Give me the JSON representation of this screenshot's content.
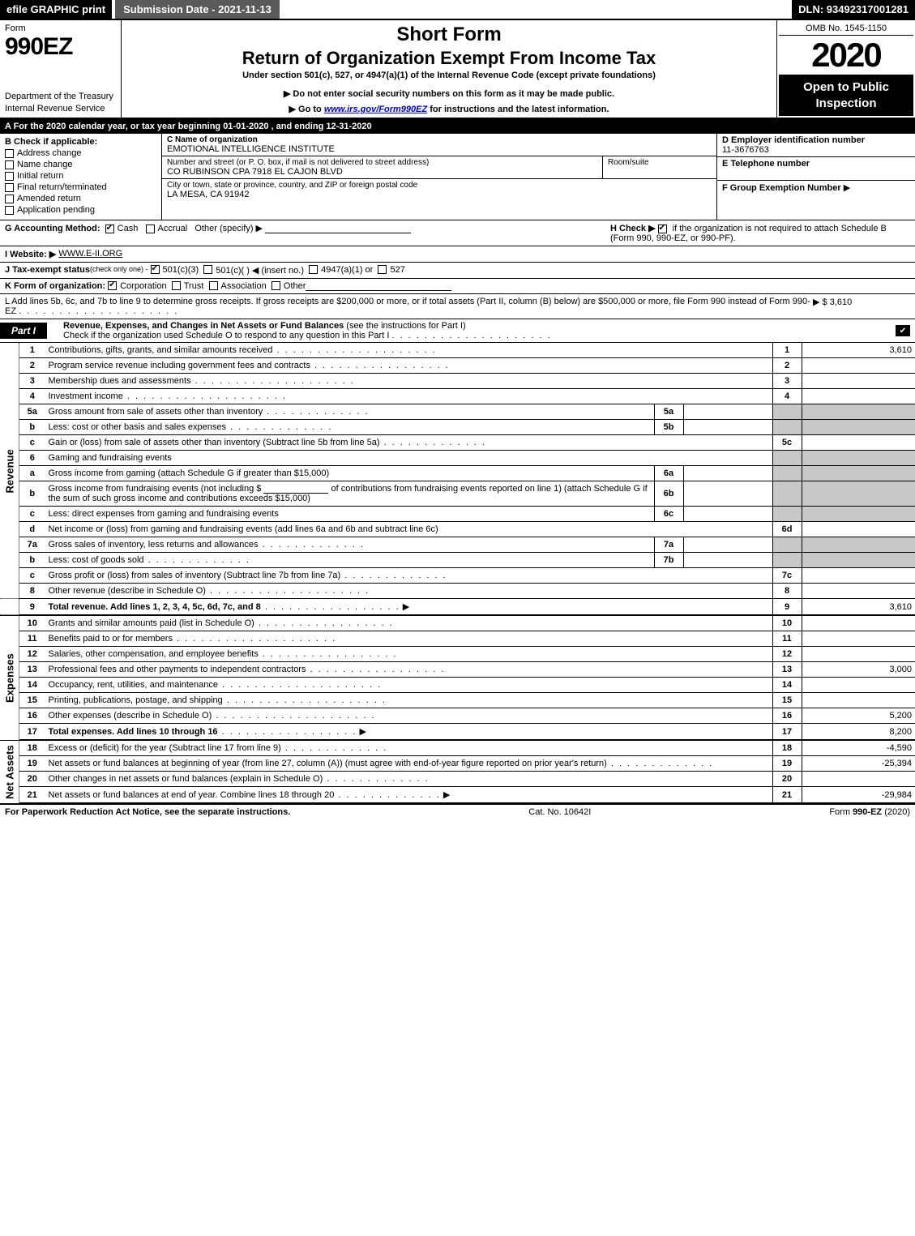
{
  "topbar": {
    "efile": "efile GRAPHIC print",
    "submission": "Submission Date - 2021-11-13",
    "dln": "DLN: 93492317001281"
  },
  "header": {
    "form_word": "Form",
    "form_number": "990EZ",
    "dept": "Department of the Treasury\nInternal Revenue Service",
    "short_form": "Short Form",
    "return_title": "Return of Organization Exempt From Income Tax",
    "section_text": "Under section 501(c), 527, or 4947(a)(1) of the Internal Revenue Code (except private foundations)",
    "donot": "▶ Do not enter social security numbers on this form as it may be made public.",
    "goto_pre": "▶ Go to ",
    "goto_link": "www.irs.gov/Form990EZ",
    "goto_post": " for instructions and the latest information.",
    "omb": "OMB No. 1545-1150",
    "year": "2020",
    "open": "Open to Public Inspection"
  },
  "line_a": "A For the 2020 calendar year, or tax year beginning 01-01-2020 , and ending 12-31-2020",
  "box_b": {
    "title": "B  Check if applicable:",
    "items": [
      {
        "label": "Address change",
        "checked": false
      },
      {
        "label": "Name change",
        "checked": false
      },
      {
        "label": "Initial return",
        "checked": false
      },
      {
        "label": "Final return/terminated",
        "checked": false
      },
      {
        "label": "Amended return",
        "checked": false
      },
      {
        "label": "Application pending",
        "checked": false
      }
    ]
  },
  "box_c": {
    "name_label": "C Name of organization",
    "name": "EMOTIONAL INTELLIGENCE INSTITUTE",
    "street_label": "Number and street (or P. O. box, if mail is not delivered to street address)",
    "street": "CO RUBINSON CPA 7918 EL CAJON BLVD",
    "room_label": "Room/suite",
    "city_label": "City or town, state or province, country, and ZIP or foreign postal code",
    "city": "LA MESA, CA  91942"
  },
  "box_def": {
    "d_label": "D Employer identification number",
    "d_value": "11-3676763",
    "e_label": "E Telephone number",
    "e_value": "",
    "f_label": "F Group Exemption Number",
    "f_arrow": "▶"
  },
  "line_g": {
    "label": "G Accounting Method:",
    "cash": "Cash",
    "accrual": "Accrual",
    "other": "Other (specify) ▶",
    "cash_checked": true
  },
  "line_h": {
    "text_pre": "H  Check ▶",
    "text_post": "if the organization is not required to attach Schedule B (Form 990, 990-EZ, or 990-PF).",
    "checked": true
  },
  "line_i": {
    "label": "I Website: ▶",
    "value": "WWW.E-II.ORG"
  },
  "line_j": {
    "label": "J Tax-exempt status",
    "sub": "(check only one) -",
    "opt1": "501(c)(3)",
    "opt1_checked": true,
    "opt2": "501(c)(  ) ◀ (insert no.)",
    "opt3": "4947(a)(1) or",
    "opt4": "527"
  },
  "line_k": {
    "label": "K Form of organization:",
    "corp": "Corporation",
    "corp_checked": true,
    "trust": "Trust",
    "assoc": "Association",
    "other": "Other"
  },
  "line_l": {
    "text": "L Add lines 5b, 6c, and 7b to line 9 to determine gross receipts. If gross receipts are $200,000 or more, or if total assets (Part II, column (B) below) are $500,000 or more, file Form 990 instead of Form 990-EZ",
    "amount": "▶ $ 3,610"
  },
  "part1": {
    "label": "Part I",
    "title": "Revenue, Expenses, and Changes in Net Assets or Fund Balances",
    "title_sub": "(see the instructions for Part I)",
    "check_text": "Check if the organization used Schedule O to respond to any question in this Part I",
    "checked": true
  },
  "side_labels": {
    "revenue": "Revenue",
    "expenses": "Expenses",
    "netassets": "Net Assets"
  },
  "revenue_lines": {
    "l1": {
      "num": "1",
      "desc": "Contributions, gifts, grants, and similar amounts received",
      "box": "1",
      "val": "3,610"
    },
    "l2": {
      "num": "2",
      "desc": "Program service revenue including government fees and contracts",
      "box": "2",
      "val": ""
    },
    "l3": {
      "num": "3",
      "desc": "Membership dues and assessments",
      "box": "3",
      "val": ""
    },
    "l4": {
      "num": "4",
      "desc": "Investment income",
      "box": "4",
      "val": ""
    },
    "l5a": {
      "num": "5a",
      "desc": "Gross amount from sale of assets other than inventory",
      "inner": "5a",
      "innerval": ""
    },
    "l5b": {
      "num": "b",
      "desc": "Less: cost or other basis and sales expenses",
      "inner": "5b",
      "innerval": ""
    },
    "l5c": {
      "num": "c",
      "desc": "Gain or (loss) from sale of assets other than inventory (Subtract line 5b from line 5a)",
      "box": "5c",
      "val": ""
    },
    "l6": {
      "num": "6",
      "desc": "Gaming and fundraising events"
    },
    "l6a": {
      "num": "a",
      "desc": "Gross income from gaming (attach Schedule G if greater than $15,000)",
      "inner": "6a",
      "innerval": ""
    },
    "l6b": {
      "num": "b",
      "desc1": "Gross income from fundraising events (not including $",
      "desc2": "of contributions from fundraising events reported on line 1) (attach Schedule G if the sum of such gross income and contributions exceeds $15,000)",
      "inner": "6b",
      "innerval": ""
    },
    "l6c": {
      "num": "c",
      "desc": "Less: direct expenses from gaming and fundraising events",
      "inner": "6c",
      "innerval": ""
    },
    "l6d": {
      "num": "d",
      "desc": "Net income or (loss) from gaming and fundraising events (add lines 6a and 6b and subtract line 6c)",
      "box": "6d",
      "val": ""
    },
    "l7a": {
      "num": "7a",
      "desc": "Gross sales of inventory, less returns and allowances",
      "inner": "7a",
      "innerval": ""
    },
    "l7b": {
      "num": "b",
      "desc": "Less: cost of goods sold",
      "inner": "7b",
      "innerval": ""
    },
    "l7c": {
      "num": "c",
      "desc": "Gross profit or (loss) from sales of inventory (Subtract line 7b from line 7a)",
      "box": "7c",
      "val": ""
    },
    "l8": {
      "num": "8",
      "desc": "Other revenue (describe in Schedule O)",
      "box": "8",
      "val": ""
    },
    "l9": {
      "num": "9",
      "desc": "Total revenue. Add lines 1, 2, 3, 4, 5c, 6d, 7c, and 8",
      "box": "9",
      "val": "3,610"
    }
  },
  "expense_lines": {
    "l10": {
      "num": "10",
      "desc": "Grants and similar amounts paid (list in Schedule O)",
      "box": "10",
      "val": ""
    },
    "l11": {
      "num": "11",
      "desc": "Benefits paid to or for members",
      "box": "11",
      "val": ""
    },
    "l12": {
      "num": "12",
      "desc": "Salaries, other compensation, and employee benefits",
      "box": "12",
      "val": ""
    },
    "l13": {
      "num": "13",
      "desc": "Professional fees and other payments to independent contractors",
      "box": "13",
      "val": "3,000"
    },
    "l14": {
      "num": "14",
      "desc": "Occupancy, rent, utilities, and maintenance",
      "box": "14",
      "val": ""
    },
    "l15": {
      "num": "15",
      "desc": "Printing, publications, postage, and shipping",
      "box": "15",
      "val": ""
    },
    "l16": {
      "num": "16",
      "desc": "Other expenses (describe in Schedule O)",
      "box": "16",
      "val": "5,200"
    },
    "l17": {
      "num": "17",
      "desc": "Total expenses. Add lines 10 through 16",
      "box": "17",
      "val": "8,200"
    }
  },
  "netasset_lines": {
    "l18": {
      "num": "18",
      "desc": "Excess or (deficit) for the year (Subtract line 17 from line 9)",
      "box": "18",
      "val": "-4,590"
    },
    "l19": {
      "num": "19",
      "desc": "Net assets or fund balances at beginning of year (from line 27, column (A)) (must agree with end-of-year figure reported on prior year's return)",
      "box": "19",
      "val": "-25,394"
    },
    "l20": {
      "num": "20",
      "desc": "Other changes in net assets or fund balances (explain in Schedule O)",
      "box": "20",
      "val": ""
    },
    "l21": {
      "num": "21",
      "desc": "Net assets or fund balances at end of year. Combine lines 18 through 20",
      "box": "21",
      "val": "-29,984"
    }
  },
  "footer": {
    "left": "For Paperwork Reduction Act Notice, see the separate instructions.",
    "center": "Cat. No. 10642I",
    "right_pre": "Form ",
    "right_bold": "990-EZ",
    "right_post": " (2020)"
  }
}
